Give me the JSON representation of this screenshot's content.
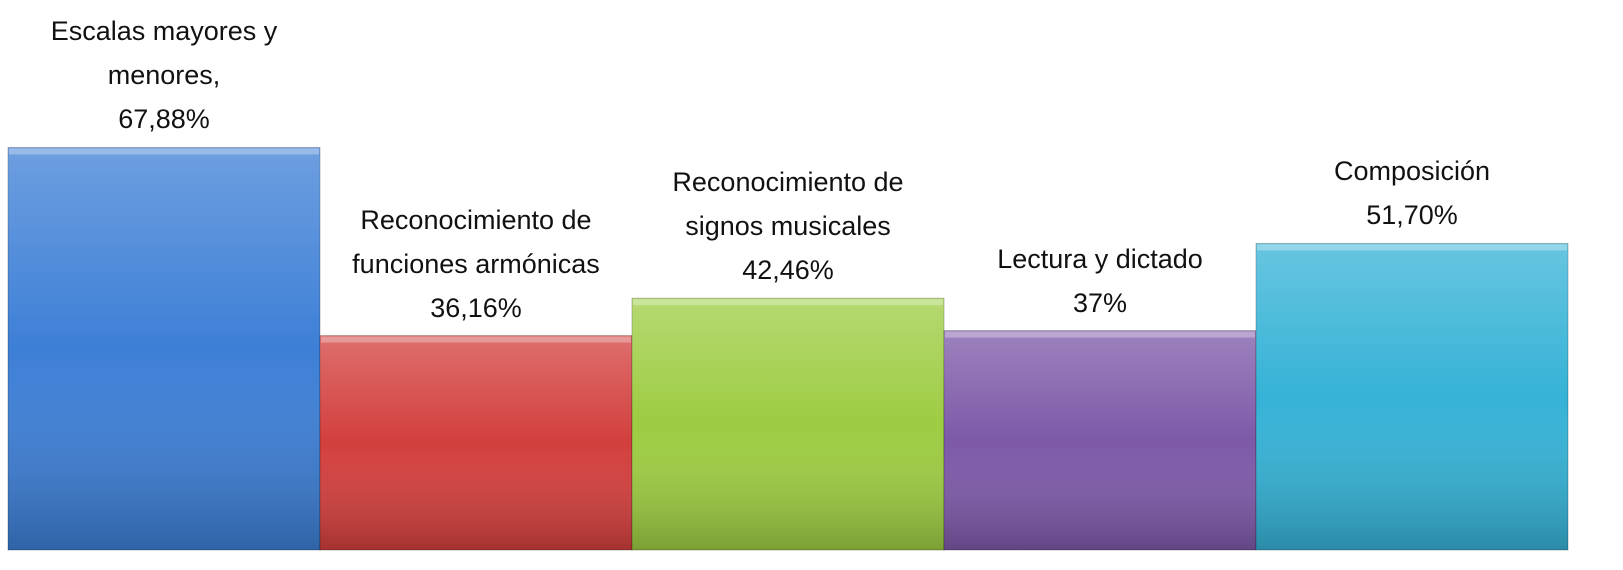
{
  "chart_data": {
    "type": "bar",
    "categories": [
      "Escalas mayores y menores,",
      "Reconocimiento de funciones armónicas",
      "Reconocimiento de signos musicales",
      "Lectura y dictado",
      "Composición"
    ],
    "values": [
      67.88,
      36.16,
      42.46,
      37,
      51.7
    ],
    "value_labels": [
      "67,88%",
      "36,16%",
      "42,46%",
      "37%",
      "51,70%"
    ],
    "colors": [
      "#3d7fd6",
      "#d23f3d",
      "#9dcc42",
      "#7d59a8",
      "#35b2d6"
    ]
  }
}
